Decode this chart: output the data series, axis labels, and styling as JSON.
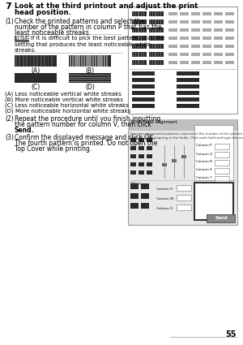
{
  "page_number": "55",
  "step_number": "7",
  "step_title": "Look at the third printout and adjust the print\nhead position.",
  "sub1_label": "(1)",
  "sub1_text": "Check the printed patterns and select the\nnumber of the pattern in column P that has the\nleast noticeable streaks.",
  "note_label": "Note",
  "note_icon_color": "#555555",
  "note_text_line1": "If it is difficult to pick the best pattern, pick the",
  "note_text_line2": "setting that produces the least noticeable white",
  "note_text_line3": "streaks.",
  "label_A": "(A)",
  "label_B": "(B)",
  "label_C": "(C)",
  "label_D": "(D)",
  "desc_A": "(A) Less noticeable vertical white streaks",
  "desc_B": "(B) More noticeable vertical white streaks",
  "desc_C": "(C) Less noticeable horizontal white streaks",
  "desc_D": "(D) More noticeable horizontal white streaks",
  "sub2_label": "(2)",
  "sub2_text_line1": "Repeat the procedure until you finish inputting",
  "sub2_text_line2": "the pattern number for column V, then click",
  "sub2_bold": "Send",
  "sub3_label": "(3)",
  "sub3_text_line1": "Confirm the displayed message and click OK.",
  "sub3_text_line2": "The fourth pattern is printed. Do not open the",
  "sub3_text_line3": "Top Cover while printing.",
  "bg_color": "#ffffff",
  "text_color": "#000000",
  "note_bg": "#555555",
  "bar_dark": "#2a2a2a",
  "separator_color": "#aaaaaa",
  "box_edge_color": "#999999",
  "page_num_line_color": "#aaaaaa"
}
